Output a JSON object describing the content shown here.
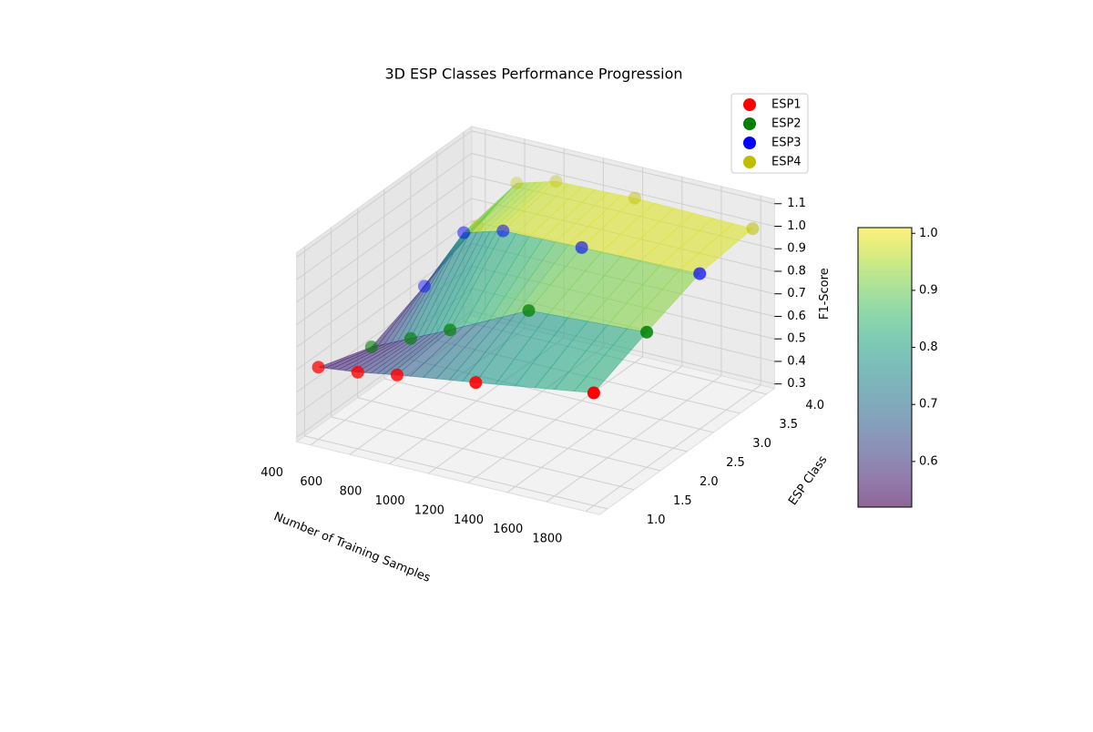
{
  "chart_data": {
    "type": "scatter3d",
    "title": "3D ESP Classes Performance Progression",
    "x_label": "Number of Training Samples",
    "y_label": "ESP Class",
    "z_label": "F1-Score",
    "x": [
      400,
      600,
      800,
      1200,
      1800
    ],
    "series": [
      {
        "name": "ESP1",
        "color": "#ff0000",
        "y": 1,
        "values": [
          0.6,
          0.62,
          0.65,
          0.7,
          0.78
        ]
      },
      {
        "name": "ESP2",
        "color": "#008000",
        "y": 2,
        "values": [
          0.52,
          0.6,
          0.68,
          0.85,
          0.88
        ]
      },
      {
        "name": "ESP3",
        "color": "#0000ff",
        "y": 3,
        "values": [
          0.62,
          0.9,
          0.95,
          0.96,
          0.97
        ]
      },
      {
        "name": "ESP4",
        "color": "#bfbf00",
        "y": 4,
        "values": [
          0.72,
          0.95,
          1.0,
          1.01,
          1.0
        ]
      }
    ],
    "xlim": [
      330,
      1870
    ],
    "ylim": [
      0.85,
      4.15
    ],
    "zlim": [
      0.28,
      1.12
    ],
    "xticks": [
      400,
      600,
      800,
      1000,
      1200,
      1400,
      1600,
      1800
    ],
    "yticks": [
      {
        "value": 1,
        "label": "1.0"
      },
      1.5,
      {
        "value": 2,
        "label": "2.0"
      },
      2.5,
      {
        "value": 3,
        "label": "3.0"
      },
      3.5,
      {
        "value": 4,
        "label": "4.0"
      }
    ],
    "zticks": [
      0.3,
      0.4,
      0.5,
      0.6,
      0.7,
      0.8,
      0.9,
      {
        "value": 1,
        "label": "1.0"
      },
      1.1
    ],
    "colorbar": {
      "lim": [
        0.52,
        1.01
      ],
      "ticks": [
        0.6,
        0.7,
        0.8,
        0.9,
        {
          "value": 1,
          "label": "1.0"
        }
      ],
      "colormap": "viridis"
    },
    "grid": true,
    "legend": "upper right"
  }
}
